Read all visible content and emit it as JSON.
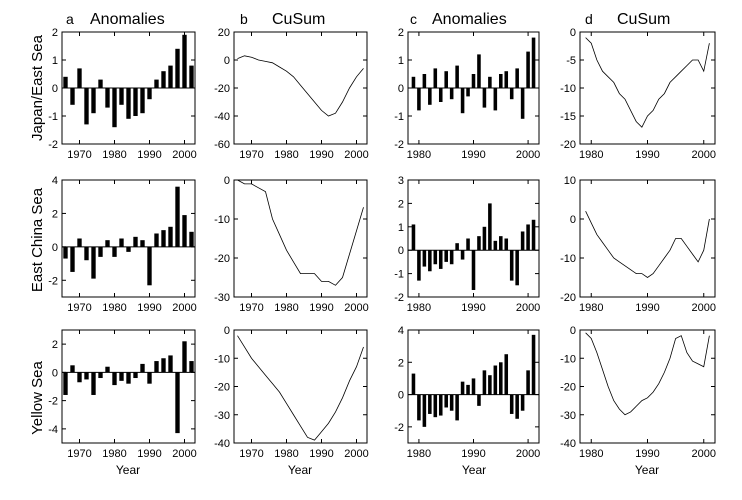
{
  "figure": {
    "column_headers": [
      {
        "letter": "a",
        "title": "Anomalies"
      },
      {
        "letter": "b",
        "title": "CuSum"
      },
      {
        "letter": "c",
        "title": "Anomalies"
      },
      {
        "letter": "d",
        "title": "CuSum"
      }
    ],
    "row_labels": [
      "Japan/East Sea",
      "East China Sea",
      "Yellow Sea"
    ],
    "xlabel": "Year"
  },
  "chart_data": [
    {
      "type": "bar",
      "name": "a-japan-east-sea",
      "xlabel": "",
      "ylabel": "Japan/East Sea",
      "xlim": [
        1965,
        2003
      ],
      "ylim": [
        -2,
        2
      ],
      "xticks": [
        1970,
        1980,
        1990,
        2000
      ],
      "yticks": [
        -2,
        -1,
        0,
        1,
        2
      ],
      "x": [
        1966,
        1968,
        1970,
        1972,
        1974,
        1976,
        1978,
        1980,
        1982,
        1984,
        1986,
        1988,
        1990,
        1992,
        1994,
        1996,
        1998,
        2000,
        2002
      ],
      "values": [
        0.4,
        -0.6,
        0.7,
        -1.3,
        -0.9,
        0.3,
        -0.7,
        -1.4,
        -0.6,
        -1.1,
        -1.0,
        -0.9,
        -0.4,
        0.3,
        0.6,
        0.8,
        1.4,
        1.9,
        0.8
      ]
    },
    {
      "type": "line",
      "name": "b-japan-east-sea",
      "xlabel": "",
      "ylabel": "",
      "xlim": [
        1965,
        2003
      ],
      "ylim": [
        -60,
        20
      ],
      "xticks": [
        1970,
        1980,
        1990,
        2000
      ],
      "yticks": [
        -60,
        -40,
        -20,
        0,
        20
      ],
      "x": [
        1966,
        1968,
        1970,
        1972,
        1974,
        1976,
        1978,
        1980,
        1982,
        1984,
        1986,
        1988,
        1990,
        1992,
        1994,
        1996,
        1998,
        2000,
        2002
      ],
      "values": [
        1,
        3,
        2,
        0,
        -1,
        -2,
        -5,
        -8,
        -12,
        -18,
        -24,
        -30,
        -36,
        -40,
        -38,
        -30,
        -20,
        -12,
        -6
      ]
    },
    {
      "type": "bar",
      "name": "c-japan-east-sea",
      "xlabel": "",
      "ylabel": "",
      "xlim": [
        1978,
        2002
      ],
      "ylim": [
        -2,
        2
      ],
      "xticks": [
        1980,
        1990,
        2000
      ],
      "yticks": [
        -2,
        -1,
        0,
        1,
        2
      ],
      "x": [
        1979,
        1980,
        1981,
        1982,
        1983,
        1984,
        1985,
        1986,
        1987,
        1988,
        1989,
        1990,
        1991,
        1992,
        1993,
        1994,
        1995,
        1996,
        1997,
        1998,
        1999,
        2000,
        2001
      ],
      "values": [
        0.4,
        -0.8,
        0.5,
        -0.6,
        0.7,
        -0.5,
        0.6,
        -0.4,
        0.8,
        -0.9,
        -0.3,
        0.5,
        1.2,
        -0.7,
        0.4,
        -0.8,
        0.5,
        0.6,
        -0.4,
        0.7,
        -1.1,
        1.3,
        1.8
      ]
    },
    {
      "type": "line",
      "name": "d-japan-east-sea",
      "xlabel": "",
      "ylabel": "",
      "xlim": [
        1978,
        2002
      ],
      "ylim": [
        -20,
        0
      ],
      "xticks": [
        1980,
        1990,
        2000
      ],
      "yticks": [
        -20,
        -15,
        -10,
        -5,
        0
      ],
      "x": [
        1979,
        1980,
        1981,
        1982,
        1983,
        1984,
        1985,
        1986,
        1987,
        1988,
        1989,
        1990,
        1991,
        1992,
        1993,
        1994,
        1995,
        1996,
        1997,
        1998,
        1999,
        2000,
        2001
      ],
      "values": [
        -1,
        -2,
        -5,
        -7,
        -8,
        -9,
        -11,
        -12,
        -14,
        -16,
        -17,
        -15,
        -14,
        -12,
        -11,
        -9,
        -8,
        -7,
        -6,
        -5,
        -5,
        -7,
        -2
      ]
    },
    {
      "type": "bar",
      "name": "a-east-china-sea",
      "xlabel": "",
      "ylabel": "East China Sea",
      "xlim": [
        1965,
        2003
      ],
      "ylim": [
        -3,
        4
      ],
      "xticks": [
        1970,
        1980,
        1990,
        2000
      ],
      "yticks": [
        -2,
        0,
        2,
        4
      ],
      "x": [
        1966,
        1968,
        1970,
        1972,
        1974,
        1976,
        1978,
        1980,
        1982,
        1984,
        1986,
        1988,
        1990,
        1992,
        1994,
        1996,
        1998,
        2000,
        2002
      ],
      "values": [
        -0.7,
        -1.5,
        0.5,
        -0.8,
        -1.9,
        -0.6,
        0.4,
        -0.6,
        0.5,
        -0.3,
        0.6,
        0.4,
        -2.3,
        0.8,
        1.0,
        1.2,
        3.6,
        1.9,
        0.9
      ]
    },
    {
      "type": "line",
      "name": "b-east-china-sea",
      "xlabel": "",
      "ylabel": "",
      "xlim": [
        1965,
        2003
      ],
      "ylim": [
        -30,
        0
      ],
      "xticks": [
        1970,
        1980,
        1990,
        2000
      ],
      "yticks": [
        -30,
        -20,
        -10,
        0
      ],
      "x": [
        1966,
        1968,
        1970,
        1972,
        1974,
        1976,
        1978,
        1980,
        1982,
        1984,
        1986,
        1988,
        1990,
        1992,
        1994,
        1996,
        1998,
        2000,
        2002
      ],
      "values": [
        0,
        -1,
        -1,
        -2,
        -3,
        -10,
        -14,
        -18,
        -21,
        -24,
        -24,
        -24,
        -26,
        -26,
        -27,
        -25,
        -19,
        -13,
        -7
      ]
    },
    {
      "type": "bar",
      "name": "c-east-china-sea",
      "xlabel": "",
      "ylabel": "",
      "xlim": [
        1978,
        2002
      ],
      "ylim": [
        -2,
        3
      ],
      "xticks": [
        1980,
        1990,
        2000
      ],
      "yticks": [
        -2,
        -1,
        0,
        1,
        2,
        3
      ],
      "x": [
        1979,
        1980,
        1981,
        1982,
        1983,
        1984,
        1985,
        1986,
        1987,
        1988,
        1989,
        1990,
        1991,
        1992,
        1993,
        1994,
        1995,
        1996,
        1997,
        1998,
        1999,
        2000,
        2001
      ],
      "values": [
        1.1,
        -1.3,
        -0.7,
        -0.9,
        -0.6,
        -0.8,
        -0.5,
        -0.6,
        0.3,
        -0.4,
        0.5,
        -1.7,
        0.6,
        1.0,
        2.0,
        0.4,
        0.6,
        0.5,
        -1.3,
        -1.5,
        0.8,
        1.1,
        1.3
      ]
    },
    {
      "type": "line",
      "name": "d-east-china-sea",
      "xlabel": "",
      "ylabel": "",
      "xlim": [
        1978,
        2002
      ],
      "ylim": [
        -20,
        10
      ],
      "xticks": [
        1980,
        1990,
        2000
      ],
      "yticks": [
        -20,
        -10,
        0,
        10
      ],
      "x": [
        1979,
        1980,
        1981,
        1982,
        1983,
        1984,
        1985,
        1986,
        1987,
        1988,
        1989,
        1990,
        1991,
        1992,
        1993,
        1994,
        1995,
        1996,
        1997,
        1998,
        1999,
        2000,
        2001
      ],
      "values": [
        2,
        -1,
        -4,
        -6,
        -8,
        -10,
        -11,
        -12,
        -13,
        -14,
        -14,
        -15,
        -14,
        -12,
        -10,
        -8,
        -5,
        -5,
        -7,
        -9,
        -11,
        -8,
        0
      ]
    },
    {
      "type": "bar",
      "name": "a-yellow-sea",
      "xlabel": "Year",
      "ylabel": "Yellow Sea",
      "xlim": [
        1965,
        2003
      ],
      "ylim": [
        -5,
        3
      ],
      "xticks": [
        1970,
        1980,
        1990,
        2000
      ],
      "yticks": [
        -4,
        -2,
        0,
        2
      ],
      "x": [
        1966,
        1968,
        1970,
        1972,
        1974,
        1976,
        1978,
        1980,
        1982,
        1984,
        1986,
        1988,
        1990,
        1992,
        1994,
        1996,
        1998,
        2000,
        2002
      ],
      "values": [
        -1.6,
        0.5,
        -0.7,
        -0.5,
        -1.6,
        -0.4,
        0.4,
        -0.9,
        -0.6,
        -0.8,
        -0.4,
        0.6,
        -0.8,
        0.8,
        1.0,
        1.2,
        -4.3,
        2.2,
        0.8
      ]
    },
    {
      "type": "line",
      "name": "b-yellow-sea",
      "xlabel": "Year",
      "ylabel": "",
      "xlim": [
        1965,
        2003
      ],
      "ylim": [
        -40,
        0
      ],
      "xticks": [
        1970,
        1980,
        1990,
        2000
      ],
      "yticks": [
        -40,
        -30,
        -20,
        -10,
        0
      ],
      "x": [
        1966,
        1968,
        1970,
        1972,
        1974,
        1976,
        1978,
        1980,
        1982,
        1984,
        1986,
        1988,
        1990,
        1992,
        1994,
        1996,
        1998,
        2000,
        2002
      ],
      "values": [
        -2,
        -6,
        -10,
        -13,
        -16,
        -19,
        -22,
        -26,
        -30,
        -34,
        -38,
        -39,
        -36,
        -33,
        -29,
        -24,
        -18,
        -13,
        -6
      ]
    },
    {
      "type": "bar",
      "name": "c-yellow-sea",
      "xlabel": "Year",
      "ylabel": "",
      "xlim": [
        1978,
        2002
      ],
      "ylim": [
        -3,
        4
      ],
      "xticks": [
        1980,
        1990,
        2000
      ],
      "yticks": [
        -2,
        0,
        2,
        4
      ],
      "x": [
        1979,
        1980,
        1981,
        1982,
        1983,
        1984,
        1985,
        1986,
        1987,
        1988,
        1989,
        1990,
        1991,
        1992,
        1993,
        1994,
        1995,
        1996,
        1997,
        1998,
        1999,
        2000,
        2001
      ],
      "values": [
        1.3,
        -1.6,
        -2.0,
        -1.2,
        -1.4,
        -1.3,
        -0.8,
        -1.0,
        -1.6,
        0.8,
        0.6,
        1.0,
        -0.7,
        1.5,
        1.2,
        1.8,
        2.0,
        2.5,
        -1.2,
        -1.5,
        -1.0,
        1.5,
        3.7
      ]
    },
    {
      "type": "line",
      "name": "d-yellow-sea",
      "xlabel": "Year",
      "ylabel": "",
      "xlim": [
        1978,
        2002
      ],
      "ylim": [
        -40,
        0
      ],
      "xticks": [
        1980,
        1990,
        2000
      ],
      "yticks": [
        -40,
        -30,
        -20,
        -10,
        0
      ],
      "x": [
        1979,
        1980,
        1981,
        1982,
        1983,
        1984,
        1985,
        1986,
        1987,
        1988,
        1989,
        1990,
        1991,
        1992,
        1993,
        1994,
        1995,
        1996,
        1997,
        1998,
        1999,
        2000,
        2001
      ],
      "values": [
        -1,
        -3,
        -8,
        -14,
        -20,
        -25,
        -28,
        -30,
        -29,
        -27,
        -25,
        -24,
        -22,
        -19,
        -15,
        -10,
        -3,
        -2,
        -8,
        -11,
        -12,
        -13,
        -2
      ]
    }
  ]
}
